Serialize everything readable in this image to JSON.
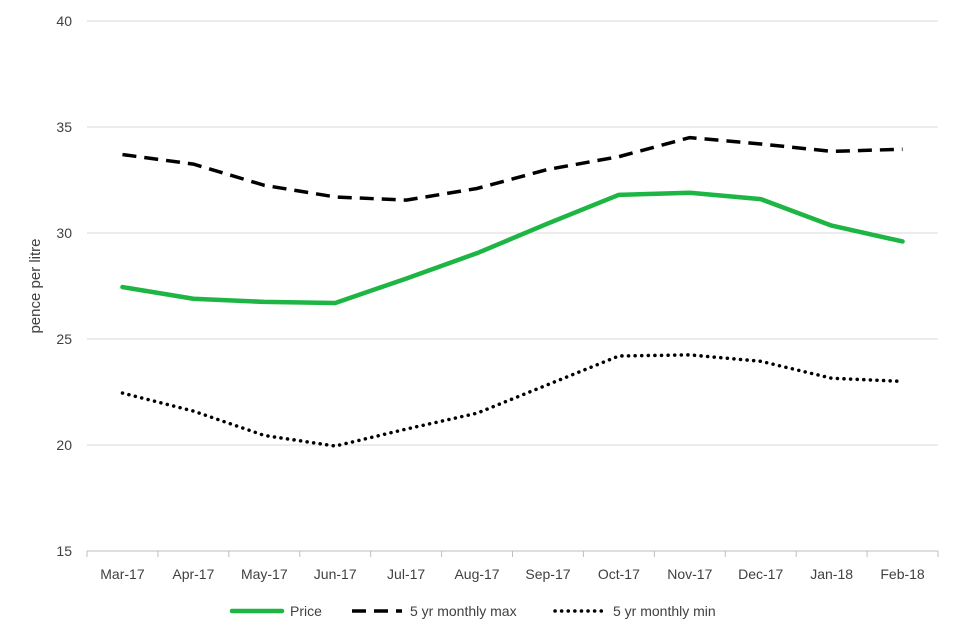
{
  "chart_data": {
    "type": "line",
    "title": "",
    "xlabel": "",
    "ylabel": "pence per litre",
    "ylim": [
      15,
      40
    ],
    "yticks": [
      15,
      20,
      25,
      30,
      35,
      40
    ],
    "grid": true,
    "legend_position": "bottom",
    "categories": [
      "Mar-17",
      "Apr-17",
      "May-17",
      "Jun-17",
      "Jul-17",
      "Aug-17",
      "Sep-17",
      "Oct-17",
      "Nov-17",
      "Dec-17",
      "Jan-18",
      "Feb-18"
    ],
    "series": [
      {
        "name": "Price",
        "style": "solid",
        "color": "#1db544",
        "values": [
          27.45,
          26.9,
          26.75,
          26.7,
          27.85,
          29.05,
          30.45,
          31.8,
          31.9,
          31.6,
          30.35,
          29.6
        ]
      },
      {
        "name": "5 yr monthly max",
        "style": "dashed",
        "color": "#000000",
        "values": [
          33.7,
          33.25,
          32.25,
          31.7,
          31.55,
          32.1,
          33.0,
          33.6,
          34.5,
          34.2,
          33.85,
          33.95
        ]
      },
      {
        "name": "5 yr monthly min",
        "style": "dotted",
        "color": "#000000",
        "values": [
          22.45,
          21.6,
          20.45,
          19.95,
          20.75,
          21.5,
          22.85,
          24.2,
          24.25,
          23.95,
          23.15,
          23.0
        ]
      }
    ]
  }
}
